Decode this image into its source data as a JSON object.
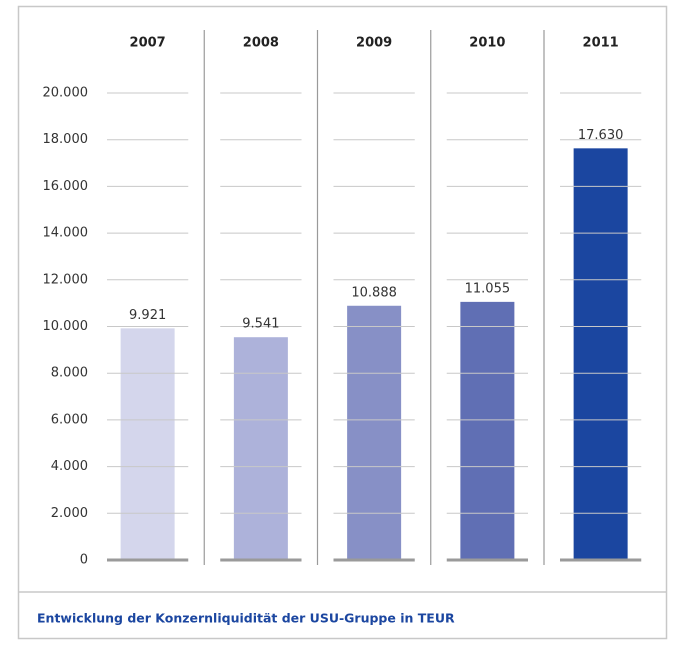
{
  "chart_data": {
    "type": "bar",
    "caption": "Entwicklung der Konzernliquidität der USU-Gruppe in TEUR",
    "categories": [
      "2007",
      "2008",
      "2009",
      "2010",
      "2011"
    ],
    "values": [
      9921,
      9541,
      10888,
      11055,
      17630
    ],
    "value_labels": [
      "9.921",
      "9.541",
      "10.888",
      "11.055",
      "17.630"
    ],
    "colors": [
      "#d4d6ec",
      "#adb2da",
      "#8790c6",
      "#606fb4",
      "#1b46a0"
    ],
    "ylim": [
      0,
      20000
    ],
    "yticks": [
      0,
      {
        "value": 2000,
        "label": "2.000"
      },
      {
        "value": 4000,
        "label": "4.000"
      },
      {
        "value": 6000,
        "label": "6.000"
      },
      {
        "value": 8000,
        "label": "8.000"
      },
      {
        "value": 10000,
        "label": "10.000"
      },
      {
        "value": 12000,
        "label": "12.000"
      },
      {
        "value": 14000,
        "label": "14.000"
      },
      {
        "value": 16000,
        "label": "16.000"
      },
      {
        "value": 18000,
        "label": "18.000"
      },
      {
        "value": 20000,
        "label": "20.000"
      }
    ],
    "grid": true
  }
}
